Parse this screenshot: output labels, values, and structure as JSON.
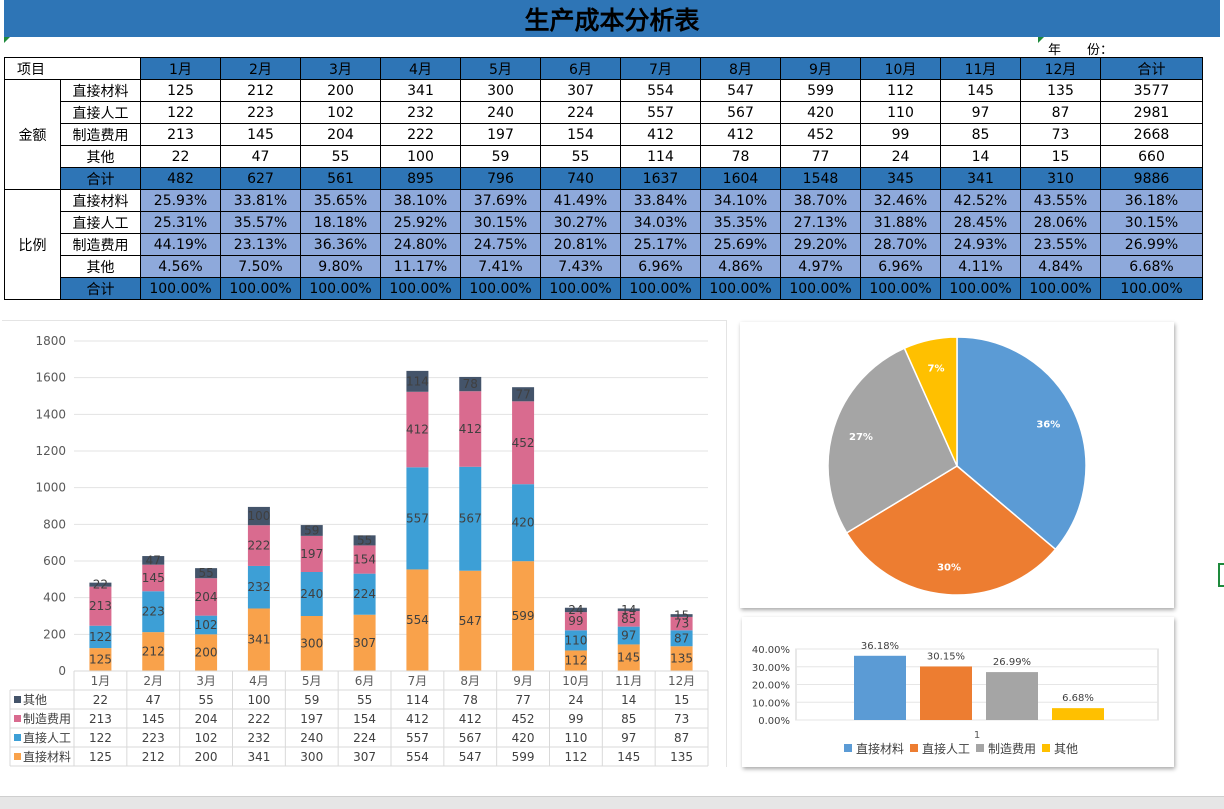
{
  "title": "生产成本分析表",
  "year_label": "年　　份：",
  "table": {
    "corner_label": "项目",
    "months": [
      "1月",
      "2月",
      "3月",
      "4月",
      "5月",
      "6月",
      "7月",
      "8月",
      "9月",
      "10月",
      "11月",
      "12月"
    ],
    "total_header": "合计",
    "amount_group": "金额",
    "ratio_group": "比例",
    "amount_rows": [
      {
        "label": "直接材料",
        "values": [
          "125",
          "212",
          "200",
          "341",
          "300",
          "307",
          "554",
          "547",
          "599",
          "112",
          "145",
          "135"
        ],
        "total": "3577"
      },
      {
        "label": "直接人工",
        "values": [
          "122",
          "223",
          "102",
          "232",
          "240",
          "224",
          "557",
          "567",
          "420",
          "110",
          "97",
          "87"
        ],
        "total": "2981"
      },
      {
        "label": "制造费用",
        "values": [
          "213",
          "145",
          "204",
          "222",
          "197",
          "154",
          "412",
          "412",
          "452",
          "99",
          "85",
          "73"
        ],
        "total": "2668"
      },
      {
        "label": "其他",
        "values": [
          "22",
          "47",
          "55",
          "100",
          "59",
          "55",
          "114",
          "78",
          "77",
          "24",
          "14",
          "15"
        ],
        "total": "660"
      },
      {
        "label": "合计",
        "values": [
          "482",
          "627",
          "561",
          "895",
          "796",
          "740",
          "1637",
          "1604",
          "1548",
          "345",
          "341",
          "310"
        ],
        "total": "9886"
      }
    ],
    "ratio_rows": [
      {
        "label": "直接材料",
        "values": [
          "25.93%",
          "33.81%",
          "35.65%",
          "38.10%",
          "37.69%",
          "41.49%",
          "33.84%",
          "34.10%",
          "38.70%",
          "32.46%",
          "42.52%",
          "43.55%"
        ],
        "total": "36.18%"
      },
      {
        "label": "直接人工",
        "values": [
          "25.31%",
          "35.57%",
          "18.18%",
          "25.92%",
          "30.15%",
          "30.27%",
          "34.03%",
          "35.35%",
          "27.13%",
          "31.88%",
          "28.45%",
          "28.06%"
        ],
        "total": "30.15%"
      },
      {
        "label": "制造费用",
        "values": [
          "44.19%",
          "23.13%",
          "36.36%",
          "24.80%",
          "24.75%",
          "20.81%",
          "25.17%",
          "25.69%",
          "29.20%",
          "28.70%",
          "24.93%",
          "23.55%"
        ],
        "total": "26.99%"
      },
      {
        "label": "其他",
        "values": [
          "4.56%",
          "7.50%",
          "9.80%",
          "11.17%",
          "7.41%",
          "7.43%",
          "6.96%",
          "4.86%",
          "4.97%",
          "6.96%",
          "4.11%",
          "4.84%"
        ],
        "total": "6.68%"
      },
      {
        "label": "合计",
        "values": [
          "100.00%",
          "100.00%",
          "100.00%",
          "100.00%",
          "100.00%",
          "100.00%",
          "100.00%",
          "100.00%",
          "100.00%",
          "100.00%",
          "100.00%",
          "100.00%"
        ],
        "total": "100.00%"
      }
    ]
  },
  "chart_data": [
    {
      "type": "bar",
      "stacked": true,
      "categories": [
        "1月",
        "2月",
        "3月",
        "4月",
        "5月",
        "6月",
        "7月",
        "8月",
        "9月",
        "10月",
        "11月",
        "12月"
      ],
      "ylim": [
        0,
        1800
      ],
      "yticks": [
        0,
        200,
        400,
        600,
        800,
        1000,
        1200,
        1400,
        1600,
        1800
      ],
      "grid": true,
      "legend": "data-table-bottom",
      "series": [
        {
          "name": "直接材料",
          "color": "#f9a24b",
          "values": [
            125,
            212,
            200,
            341,
            300,
            307,
            554,
            547,
            599,
            112,
            145,
            135
          ]
        },
        {
          "name": "直接人工",
          "color": "#3d9fd6",
          "values": [
            122,
            223,
            102,
            232,
            240,
            224,
            557,
            567,
            420,
            110,
            97,
            87
          ]
        },
        {
          "name": "制造费用",
          "color": "#d96b8f",
          "values": [
            213,
            145,
            204,
            222,
            197,
            154,
            412,
            412,
            452,
            99,
            85,
            73
          ]
        },
        {
          "name": "其他",
          "color": "#44546a",
          "values": [
            22,
            47,
            55,
            100,
            59,
            55,
            114,
            78,
            77,
            24,
            14,
            15
          ]
        }
      ]
    },
    {
      "type": "pie",
      "slices": [
        {
          "name": "直接材料",
          "value": 36.18,
          "label": "36%",
          "color": "#5b9bd5"
        },
        {
          "name": "直接人工",
          "value": 30.15,
          "label": "30%",
          "color": "#ed7d31"
        },
        {
          "name": "制造费用",
          "value": 26.99,
          "label": "27%",
          "color": "#a5a5a5"
        },
        {
          "name": "其他",
          "value": 6.68,
          "label": "7%",
          "color": "#ffc000"
        }
      ]
    },
    {
      "type": "bar",
      "categories": [
        "1"
      ],
      "ylim": [
        0,
        40
      ],
      "yticks": [
        "0.00%",
        "10.00%",
        "20.00%",
        "30.00%",
        "40.00%"
      ],
      "legend": "bottom",
      "series": [
        {
          "name": "直接材料",
          "value": 36.18,
          "label": "36.18%",
          "color": "#5b9bd5"
        },
        {
          "name": "直接人工",
          "value": 30.15,
          "label": "30.15%",
          "color": "#ed7d31"
        },
        {
          "name": "制造费用",
          "value": 26.99,
          "label": "26.99%",
          "color": "#a5a5a5"
        },
        {
          "name": "其他",
          "value": 6.68,
          "label": "6.68%",
          "color": "#ffc000"
        }
      ]
    }
  ]
}
